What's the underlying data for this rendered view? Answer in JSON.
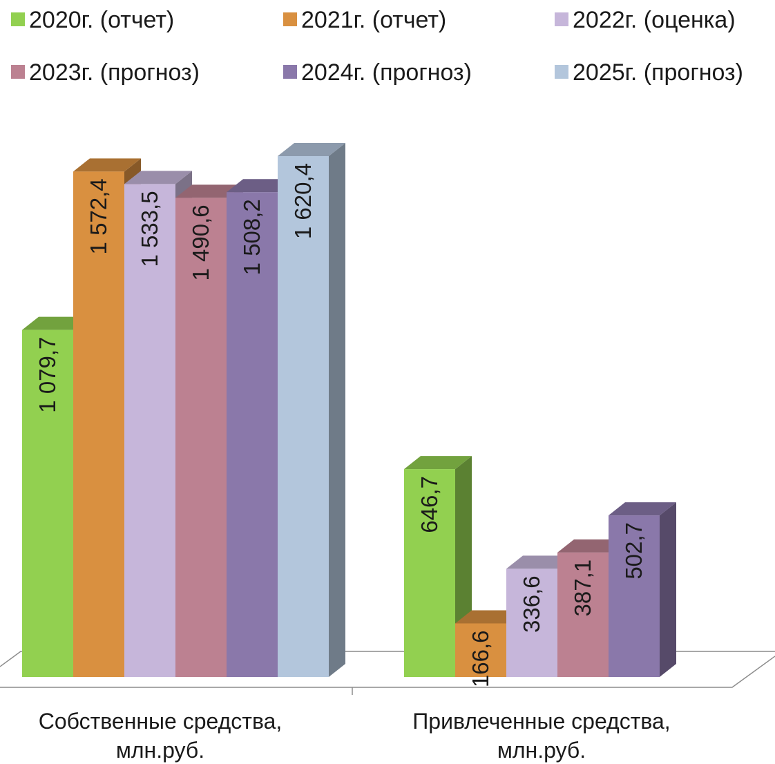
{
  "chart_data": {
    "type": "bar",
    "variant": "3d-clustered-column",
    "categories": [
      "Собственные средства, млн.руб.",
      "Привлеченные средства, млн.руб."
    ],
    "category_lines": [
      [
        "Собственные средства,",
        "млн.руб."
      ],
      [
        "Привлеченные средства,",
        "млн.руб."
      ]
    ],
    "series": [
      {
        "name": "2020г. (отчет)",
        "color": "#92d050",
        "values": [
          1079.7,
          646.7
        ],
        "labels": [
          "1 079,7",
          "646,7"
        ]
      },
      {
        "name": "2021г. (отчет)",
        "color": "#d99040",
        "values": [
          1572.4,
          166.6
        ],
        "labels": [
          "1 572,4",
          "166,6"
        ]
      },
      {
        "name": "2022г. (оценка)",
        "color": "#c6b6da",
        "values": [
          1533.5,
          336.6
        ],
        "labels": [
          "1 533,5",
          "336,6"
        ]
      },
      {
        "name": "2023г. (прогноз)",
        "color": "#bc8191",
        "values": [
          1490.6,
          387.1
        ],
        "labels": [
          "1 490,6",
          "387,1"
        ]
      },
      {
        "name": "2024г. (прогноз)",
        "color": "#8a78aa",
        "values": [
          1508.2,
          502.7
        ],
        "labels": [
          "1 508,2",
          "502,7"
        ]
      },
      {
        "name": "2025г. (прогноз)",
        "color": "#b3c6dc",
        "values": [
          1620.4,
          null
        ],
        "labels": [
          "1 620,4",
          ""
        ]
      }
    ],
    "legend_position": "top",
    "data_labels": "vertical",
    "grid": false,
    "ylim": [
      0,
      1700
    ]
  }
}
